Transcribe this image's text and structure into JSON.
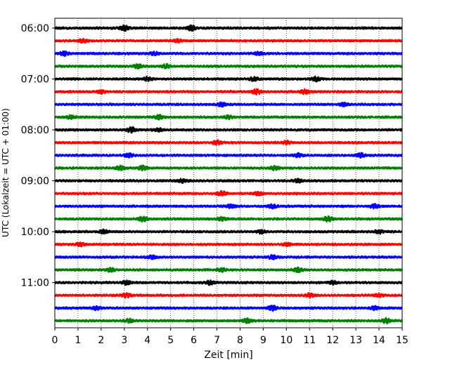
{
  "chart_data": {
    "type": "line",
    "title": "",
    "xlabel": "Zeit  [min]",
    "ylabel": "UTC (Lokalzeit = UTC + 01:00)",
    "xlim": [
      0,
      15
    ],
    "x_ticks": [
      "0",
      "1",
      "2",
      "3",
      "4",
      "5",
      "6",
      "7",
      "8",
      "9",
      "10",
      "11",
      "12",
      "13",
      "14",
      "15"
    ],
    "y_ticks": [
      "06:00",
      "07:00",
      "08:00",
      "09:00",
      "10:00",
      "11:00"
    ],
    "vertical_grid": true,
    "trace_interval_min": 15,
    "trace_colors": [
      "#000000",
      "#ff0000",
      "#0000ff",
      "#008000"
    ],
    "traces": [
      {
        "start": "06:00",
        "bursts": [
          [
            3.0,
            1.0
          ],
          [
            5.9,
            1.0
          ]
        ]
      },
      {
        "start": "06:15",
        "bursts": [
          [
            1.2,
            0.7
          ],
          [
            5.3,
            0.6
          ]
        ]
      },
      {
        "start": "06:30",
        "bursts": [
          [
            0.4,
            0.8
          ],
          [
            4.3,
            0.6
          ],
          [
            8.8,
            0.5
          ]
        ]
      },
      {
        "start": "06:45",
        "bursts": [
          [
            3.6,
            0.8
          ],
          [
            4.8,
            0.7
          ]
        ]
      },
      {
        "start": "07:00",
        "bursts": [
          [
            4.0,
            0.7
          ],
          [
            8.6,
            0.7
          ],
          [
            11.3,
            0.8
          ]
        ]
      },
      {
        "start": "07:15",
        "bursts": [
          [
            2.0,
            0.6
          ],
          [
            8.7,
            1.0
          ],
          [
            10.8,
            0.8
          ]
        ]
      },
      {
        "start": "07:30",
        "bursts": [
          [
            7.2,
            0.7
          ],
          [
            12.5,
            0.6
          ]
        ]
      },
      {
        "start": "07:45",
        "bursts": [
          [
            0.7,
            0.6
          ],
          [
            4.5,
            0.8
          ],
          [
            7.5,
            0.6
          ]
        ]
      },
      {
        "start": "08:00",
        "bursts": [
          [
            3.3,
            1.0
          ],
          [
            4.5,
            0.6
          ]
        ]
      },
      {
        "start": "08:15",
        "bursts": [
          [
            7.0,
            0.8
          ],
          [
            10.0,
            0.6
          ]
        ]
      },
      {
        "start": "08:30",
        "bursts": [
          [
            3.2,
            0.7
          ],
          [
            10.5,
            0.7
          ],
          [
            13.2,
            0.8
          ]
        ]
      },
      {
        "start": "08:45",
        "bursts": [
          [
            2.8,
            0.9
          ],
          [
            3.8,
            0.9
          ],
          [
            9.5,
            0.7
          ]
        ]
      },
      {
        "start": "09:00",
        "bursts": [
          [
            5.5,
            0.6
          ],
          [
            10.5,
            0.6
          ]
        ]
      },
      {
        "start": "09:15",
        "bursts": [
          [
            7.2,
            0.9
          ],
          [
            8.8,
            0.6
          ]
        ]
      },
      {
        "start": "09:30",
        "bursts": [
          [
            7.6,
            0.7
          ],
          [
            9.4,
            0.8
          ],
          [
            13.8,
            0.7
          ]
        ]
      },
      {
        "start": "09:45",
        "bursts": [
          [
            3.8,
            0.9
          ],
          [
            7.2,
            0.7
          ],
          [
            11.8,
            1.0
          ]
        ]
      },
      {
        "start": "10:00",
        "bursts": [
          [
            2.1,
            0.7
          ],
          [
            8.9,
            0.6
          ],
          [
            14.0,
            0.6
          ]
        ]
      },
      {
        "start": "10:15",
        "bursts": [
          [
            1.1,
            0.6
          ],
          [
            10.0,
            0.5
          ]
        ]
      },
      {
        "start": "10:30",
        "bursts": [
          [
            4.2,
            0.6
          ],
          [
            9.4,
            0.7
          ]
        ]
      },
      {
        "start": "10:45",
        "bursts": [
          [
            2.4,
            0.7
          ],
          [
            7.2,
            0.6
          ],
          [
            10.5,
            0.9
          ]
        ]
      },
      {
        "start": "11:00",
        "bursts": [
          [
            3.1,
            0.7
          ],
          [
            6.7,
            0.8
          ],
          [
            12.0,
            0.6
          ]
        ]
      },
      {
        "start": "11:15",
        "bursts": [
          [
            3.1,
            0.8
          ],
          [
            11.0,
            0.7
          ],
          [
            14.0,
            0.6
          ]
        ]
      },
      {
        "start": "11:30",
        "bursts": [
          [
            1.8,
            0.6
          ],
          [
            9.4,
            0.9
          ],
          [
            13.8,
            0.6
          ]
        ]
      },
      {
        "start": "11:45",
        "bursts": [
          [
            3.2,
            0.7
          ],
          [
            8.3,
            0.8
          ],
          [
            14.3,
            0.9
          ]
        ]
      }
    ]
  }
}
